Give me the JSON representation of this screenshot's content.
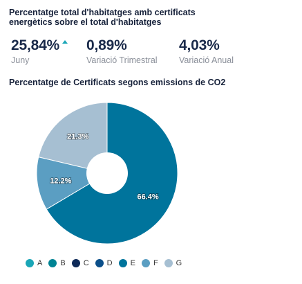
{
  "header": {
    "title": "Percentatge total d'habitatges amb certificats energètics sobre el total d'habitatges"
  },
  "kpis": [
    {
      "value": "25,84%",
      "label": "Juny",
      "trend": "up"
    },
    {
      "value": "0,89%",
      "label": "Variació Trimestral"
    },
    {
      "value": "4,03%",
      "label": "Variació Anual"
    }
  ],
  "colors": {
    "trend_up": "#1aa6b7"
  },
  "chart_data": {
    "type": "pie",
    "title": "Percentatge de Certificats segons emissions de CO2",
    "donut": true,
    "legend_position": "bottom-left",
    "slices": [
      {
        "label": "E",
        "value": 66.4,
        "display": "66.4%",
        "color": "#00749c"
      },
      {
        "label": "F",
        "value": 12.2,
        "display": "12.2%",
        "color": "#5b9ec2"
      },
      {
        "label": "G",
        "value": 21.3,
        "display": "21.3%",
        "color": "#a6bfd2"
      }
    ],
    "legend": [
      {
        "label": "A",
        "color": "#1aa6b7"
      },
      {
        "label": "B",
        "color": "#008494"
      },
      {
        "label": "C",
        "color": "#0e2a58"
      },
      {
        "label": "D",
        "color": "#0b4f8a"
      },
      {
        "label": "E",
        "color": "#00749c"
      },
      {
        "label": "F",
        "color": "#5b9ec2"
      },
      {
        "label": "G",
        "color": "#a6bfd2"
      }
    ]
  }
}
